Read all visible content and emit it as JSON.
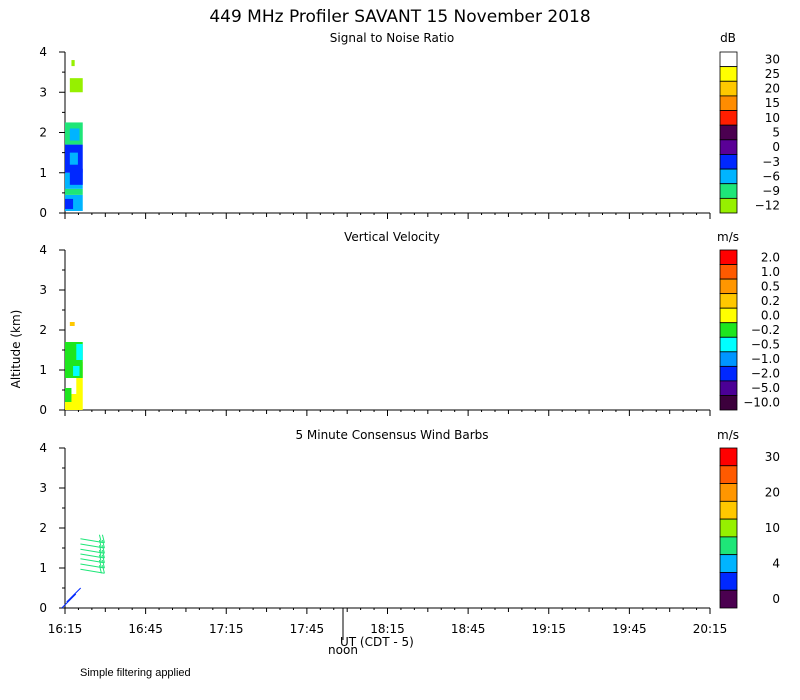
{
  "title": "449 MHz Profiler SAVANT 15 November 2018",
  "ylabel": "Altitude (km)",
  "x_ticks": [
    "16:15",
    "16:45",
    "17:15",
    "17:45",
    "18:15",
    "18:45",
    "19:15",
    "19:45",
    "20:15"
  ],
  "x_axis_note": "UT  (CDT - 5)",
  "noon_label": "noon",
  "footnote": "Simple filtering applied",
  "chart_data": [
    {
      "type": "heatmap",
      "title": "Signal to Noise Ratio",
      "unit": "dB",
      "xlim": [
        "16:15",
        "20:15"
      ],
      "ylim": [
        0,
        4
      ],
      "y_ticks": [
        "0",
        "1",
        "2",
        "3",
        "4"
      ],
      "colorbar": {
        "labels": [
          "30",
          "25",
          "20",
          "15",
          "10",
          "5",
          "0",
          "−3",
          "−6",
          "−9",
          "−12"
        ],
        "colors": [
          "#ffffff",
          "#ffff00",
          "#ffc800",
          "#ff8c00",
          "#ff1e00",
          "#4b0050",
          "#5a0096",
          "#0028ff",
          "#00b4ff",
          "#1ee678",
          "#96f000"
        ]
      },
      "cells": [
        {
          "t0": 0.0,
          "t1": 0.11,
          "z0": 0.05,
          "z1": 0.45,
          "color": "#00b4ff"
        },
        {
          "t0": 0.0,
          "t1": 0.05,
          "z0": 0.1,
          "z1": 0.35,
          "color": "#0028ff"
        },
        {
          "t0": 0.0,
          "t1": 0.11,
          "z0": 0.45,
          "z1": 0.6,
          "color": "#1ee678"
        },
        {
          "t0": 0.0,
          "t1": 0.11,
          "z0": 0.6,
          "z1": 1.0,
          "color": "#00b4ff"
        },
        {
          "t0": 0.03,
          "t1": 0.11,
          "z0": 0.7,
          "z1": 1.1,
          "color": "#0028ff"
        },
        {
          "t0": 0.0,
          "t1": 0.11,
          "z0": 1.0,
          "z1": 1.7,
          "color": "#0028ff"
        },
        {
          "t0": 0.03,
          "t1": 0.08,
          "z0": 1.2,
          "z1": 1.5,
          "color": "#00b4ff"
        },
        {
          "t0": 0.0,
          "t1": 0.11,
          "z0": 1.7,
          "z1": 2.25,
          "color": "#1ee678"
        },
        {
          "t0": 0.03,
          "t1": 0.09,
          "z0": 1.8,
          "z1": 2.1,
          "color": "#00b4ff"
        },
        {
          "t0": 0.03,
          "t1": 0.11,
          "z0": 3.0,
          "z1": 3.35,
          "color": "#96f000"
        },
        {
          "t0": 0.04,
          "t1": 0.06,
          "z0": 3.65,
          "z1": 3.8,
          "color": "#96f000"
        }
      ]
    },
    {
      "type": "heatmap",
      "title": "Vertical Velocity",
      "unit": "m/s",
      "xlim": [
        "16:15",
        "20:15"
      ],
      "ylim": [
        0,
        4
      ],
      "y_ticks": [
        "0",
        "1",
        "2",
        "3",
        "4"
      ],
      "colorbar": {
        "labels": [
          "2.0",
          "1.0",
          "0.5",
          "0.2",
          "0.0",
          "−0.2",
          "−0.5",
          "−1.0",
          "−2.0",
          "−5.0",
          "−10.0"
        ],
        "colors": [
          "#ff0000",
          "#ff5a00",
          "#ff9600",
          "#ffc800",
          "#ffff00",
          "#1ee61e",
          "#00ffff",
          "#0096ff",
          "#0028ff",
          "#4b0096",
          "#3c003c"
        ]
      },
      "cells": [
        {
          "t0": 0.0,
          "t1": 0.11,
          "z0": 0.0,
          "z1": 0.4,
          "color": "#ffff00"
        },
        {
          "t0": 0.0,
          "t1": 0.04,
          "z0": 0.2,
          "z1": 0.55,
          "color": "#1ee61e"
        },
        {
          "t0": 0.07,
          "t1": 0.11,
          "z0": 0.4,
          "z1": 1.2,
          "color": "#ffff00"
        },
        {
          "t0": 0.0,
          "t1": 0.11,
          "z0": 0.8,
          "z1": 1.3,
          "color": "#1ee61e"
        },
        {
          "t0": 0.05,
          "t1": 0.09,
          "z0": 0.85,
          "z1": 1.1,
          "color": "#00ffff"
        },
        {
          "t0": 0.0,
          "t1": 0.11,
          "z0": 1.3,
          "z1": 1.7,
          "color": "#1ee61e"
        },
        {
          "t0": 0.07,
          "t1": 0.11,
          "z0": 1.25,
          "z1": 1.65,
          "color": "#00ffff"
        },
        {
          "t0": 0.03,
          "t1": 0.06,
          "z0": 2.1,
          "z1": 2.2,
          "color": "#ffc800"
        }
      ]
    },
    {
      "type": "scatter",
      "title": "5 Minute Consensus Wind Barbs",
      "unit": "m/s",
      "xlim": [
        "16:15",
        "20:15"
      ],
      "ylim": [
        0,
        4
      ],
      "y_ticks": [
        "0",
        "1",
        "2",
        "3",
        "4"
      ],
      "colorbar": {
        "labels": [
          "30",
          "",
          "20",
          "",
          "10",
          "",
          "4",
          "",
          "0"
        ],
        "colors": [
          "#ff0000",
          "#ff5a00",
          "#ff9600",
          "#ffc800",
          "#96f000",
          "#1ee678",
          "#00b4ff",
          "#0028ff",
          "#4b0050"
        ]
      },
      "barbs": [
        {
          "time_h": 0.17,
          "alt_km": 1.68,
          "speed_ms": 8,
          "color": "#1ee678"
        },
        {
          "time_h": 0.17,
          "alt_km": 1.55,
          "speed_ms": 8,
          "color": "#1ee678"
        },
        {
          "time_h": 0.17,
          "alt_km": 1.42,
          "speed_ms": 9,
          "color": "#1ee678"
        },
        {
          "time_h": 0.17,
          "alt_km": 1.3,
          "speed_ms": 9,
          "color": "#1ee678"
        },
        {
          "time_h": 0.17,
          "alt_km": 1.18,
          "speed_ms": 8,
          "color": "#1ee678"
        },
        {
          "time_h": 0.17,
          "alt_km": 1.05,
          "speed_ms": 8,
          "color": "#1ee678"
        },
        {
          "time_h": 0.17,
          "alt_km": 0.92,
          "speed_ms": 9,
          "color": "#1ee678"
        },
        {
          "time_h": 0.03,
          "alt_km": 0.2,
          "speed_ms": 4,
          "color": "#0028ff"
        },
        {
          "time_h": 0.06,
          "alt_km": 0.35,
          "speed_ms": 4,
          "color": "#0028ff"
        }
      ]
    }
  ]
}
